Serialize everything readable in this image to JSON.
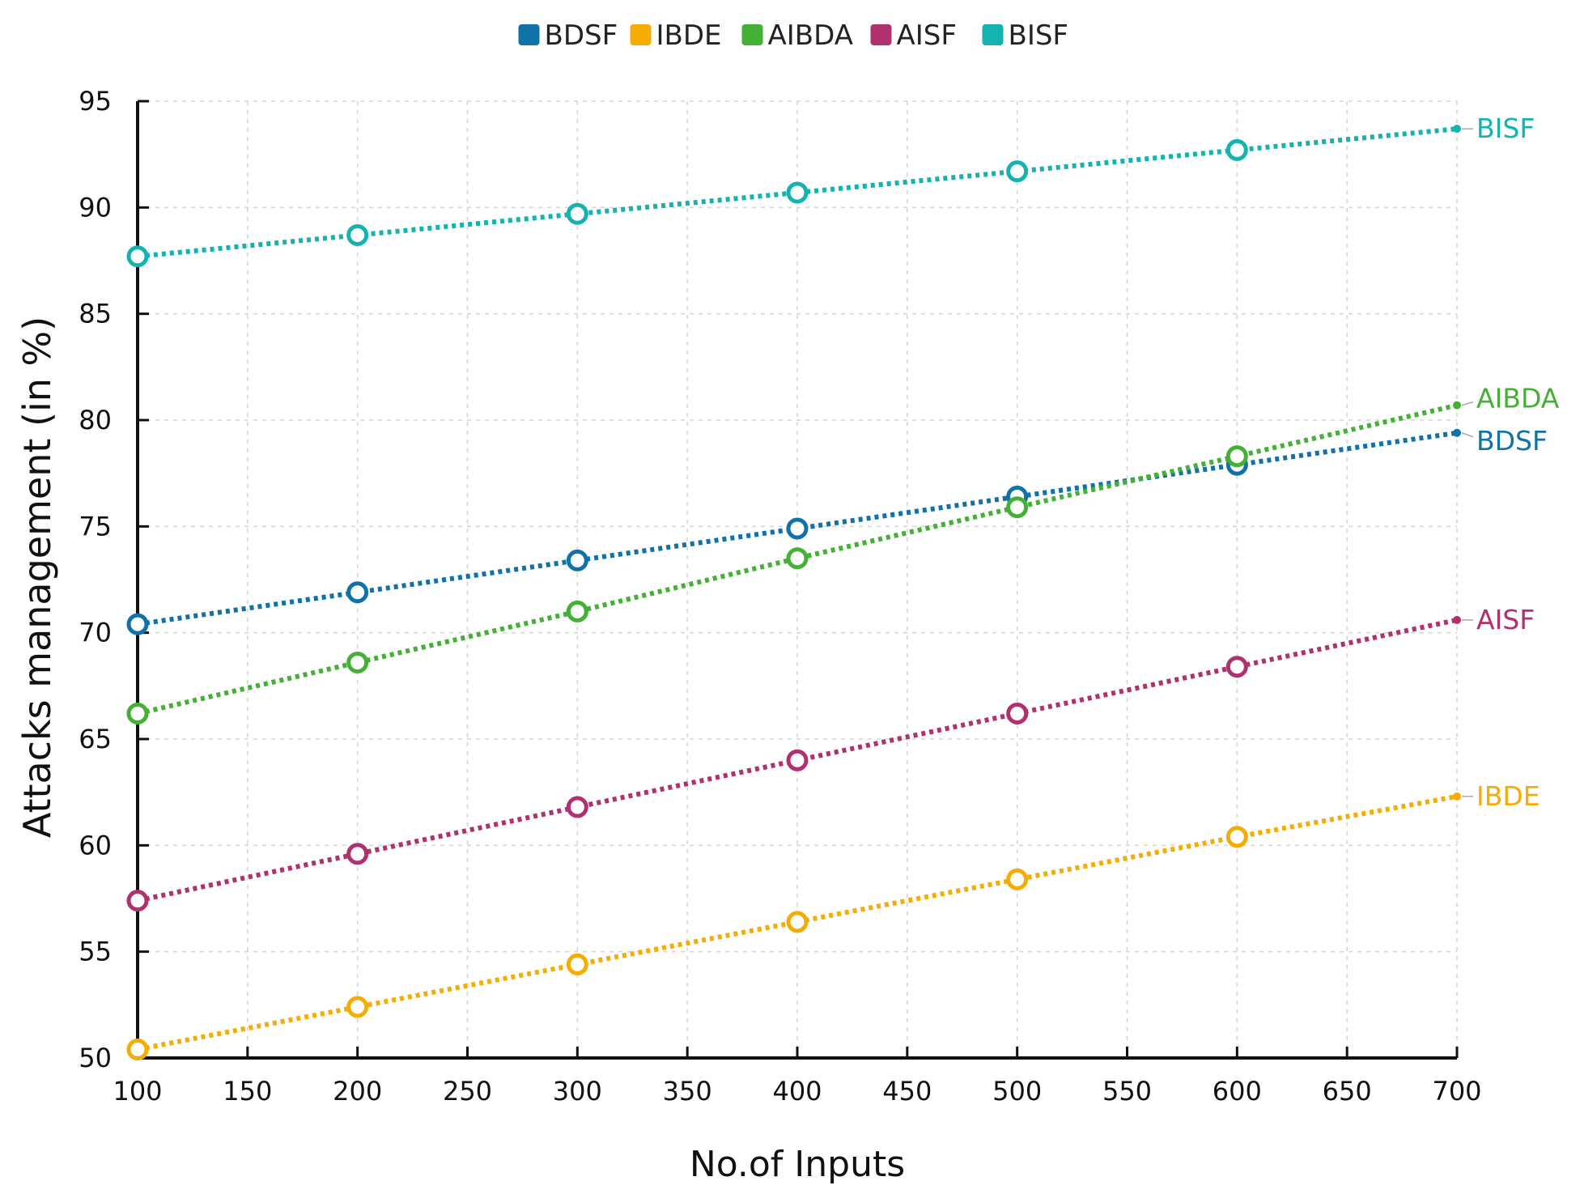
{
  "chart_data": {
    "type": "line",
    "title": "",
    "xlabel": "No.of Inputs",
    "ylabel": "Attacks management (in %)",
    "x_ticks": [
      "100",
      "150",
      "200",
      "250",
      "300",
      "350",
      "400",
      "450",
      "500",
      "550",
      "600",
      "650",
      "700"
    ],
    "y_ticks": [
      "50",
      "55",
      "60",
      "65",
      "70",
      "75",
      "80",
      "85",
      "90",
      "95"
    ],
    "xlim": [
      100,
      700
    ],
    "ylim": [
      50,
      95
    ],
    "grid": true,
    "legend_position": "top",
    "x": [
      100,
      200,
      300,
      400,
      500,
      600,
      700
    ],
    "series": [
      {
        "name": "BDSF",
        "color": "#1172a8",
        "values": [
          70.4,
          71.9,
          73.4,
          74.9,
          76.4,
          77.9,
          79.4
        ],
        "end_label": "BDSF"
      },
      {
        "name": "IBDE",
        "color": "#f5ac05",
        "values": [
          50.4,
          52.4,
          54.4,
          56.4,
          58.4,
          60.4,
          62.3
        ],
        "end_label": "IBDE"
      },
      {
        "name": "AIBDA",
        "color": "#45b036",
        "values": [
          66.2,
          68.6,
          71.0,
          73.5,
          75.9,
          78.3,
          80.7
        ],
        "end_label": "AIBDA"
      },
      {
        "name": "AISF",
        "color": "#b0316e",
        "values": [
          57.4,
          59.6,
          61.8,
          64.0,
          66.2,
          68.4,
          70.6
        ],
        "end_label": "AISF"
      },
      {
        "name": "BISF",
        "color": "#14b3b0",
        "values": [
          87.7,
          88.7,
          89.7,
          90.7,
          91.7,
          92.7,
          93.7
        ],
        "end_label": "BISF"
      }
    ]
  }
}
